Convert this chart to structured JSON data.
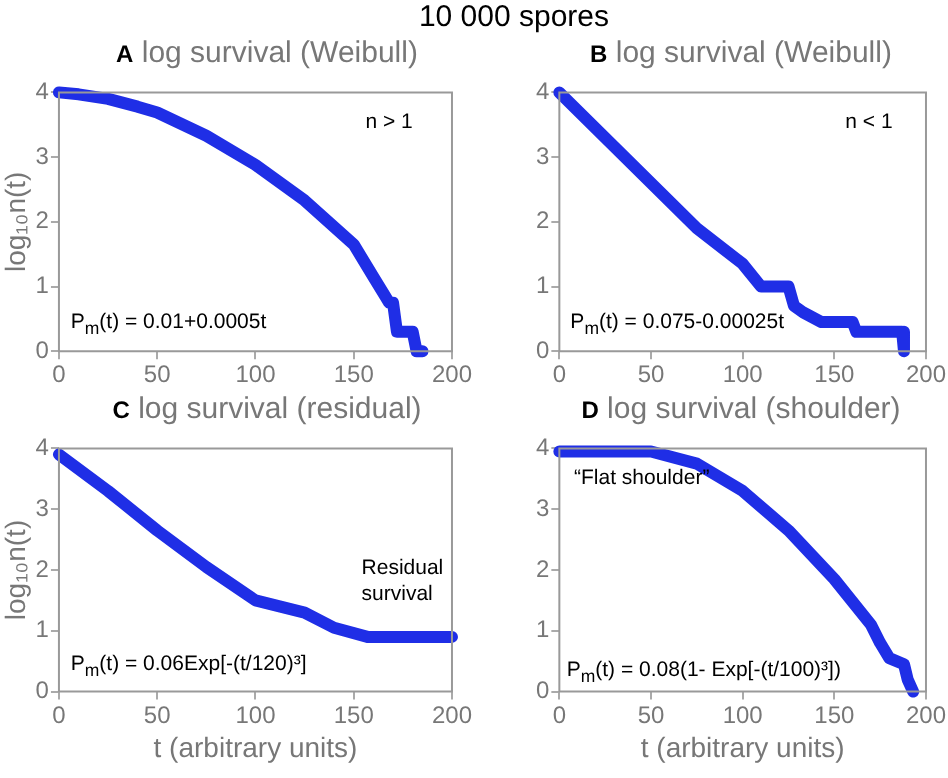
{
  "chart_data": [
    {
      "type": "line",
      "title": "A log survival (Weibull)",
      "ylabel": "log₁₀n(t)",
      "annotations": [
        "10 000 spores",
        "n > 1",
        "P$_{m}$(t) = 0.01+0.0005t"
      ],
      "series": [
        {
          "color": "#1f2ee6",
          "x": [
            0,
            10,
            25,
            40,
            50,
            75,
            100,
            125,
            150,
            160,
            166,
            168,
            170,
            172,
            180,
            182,
            185
          ],
          "values": [
            4,
            3.97,
            3.9,
            3.78,
            3.69,
            3.33,
            2.88,
            2.33,
            1.65,
            1.15,
            0.85,
            0.75,
            0.75,
            0.3,
            0.3,
            0,
            0
          ]
        }
      ],
      "xlim": [
        0,
        200
      ],
      "ylim": [
        0,
        4
      ],
      "xticks": [
        0,
        50,
        100,
        150,
        200
      ],
      "yticks": [
        0,
        1,
        2,
        3,
        4
      ],
      "grid": false
    },
    {
      "type": "line",
      "title": "B log survival (Weibull)",
      "annotations": [
        "n < 1",
        "P$_{m}$(t) = 0.075-0.00025t"
      ],
      "series": [
        {
          "color": "#1f2ee6",
          "x": [
            0,
            25,
            50,
            75,
            100,
            110,
            125,
            128,
            133,
            143,
            160,
            162,
            187,
            188
          ],
          "values": [
            4,
            3.3,
            2.6,
            1.9,
            1.35,
            1.0,
            1.0,
            0.7,
            0.6,
            0.45,
            0.45,
            0.3,
            0.3,
            0
          ]
        }
      ],
      "xlim": [
        0,
        200
      ],
      "ylim": [
        0,
        4
      ],
      "xticks": [
        0,
        50,
        100,
        150,
        200
      ],
      "yticks": [
        0,
        1,
        2,
        3,
        4
      ],
      "grid": false
    },
    {
      "type": "line",
      "title": "C log survival (residual)",
      "xlabel": "t (arbitrary units)",
      "ylabel": "log₁₀n(t)",
      "annotations": [
        "Residual survival",
        "P$_{m}$(t) = 0.06Exp[-(t/120)³]"
      ],
      "series": [
        {
          "color": "#1f2ee6",
          "x": [
            0,
            25,
            50,
            75,
            100,
            125,
            140,
            157,
            200
          ],
          "values": [
            3.9,
            3.3,
            2.65,
            2.05,
            1.5,
            1.3,
            1.05,
            0.9,
            0.9
          ]
        }
      ],
      "xlim": [
        0,
        200
      ],
      "ylim": [
        0,
        4
      ],
      "xticks": [
        0,
        50,
        100,
        150,
        200
      ],
      "yticks": [
        0,
        1,
        2,
        3,
        4
      ],
      "grid": false
    },
    {
      "type": "line",
      "title": "D log survival (shoulder)",
      "xlabel": "t (arbitrary units)",
      "annotations": [
        "“Flat shoulder”",
        "P$_{m}$(t) = 0.08(1- Exp[-(t/100)³])"
      ],
      "series": [
        {
          "color": "#1f2ee6",
          "x": [
            0,
            50,
            75,
            100,
            125,
            150,
            170,
            175,
            180,
            188,
            190,
            193
          ],
          "values": [
            3.95,
            3.95,
            3.75,
            3.3,
            2.65,
            1.85,
            1.1,
            0.8,
            0.55,
            0.45,
            0.2,
            0
          ]
        }
      ],
      "xlim": [
        0,
        200
      ],
      "ylim": [
        0,
        4
      ],
      "xticks": [
        0,
        50,
        100,
        150,
        200
      ],
      "yticks": [
        0,
        1,
        2,
        3,
        4
      ],
      "grid": false
    }
  ]
}
